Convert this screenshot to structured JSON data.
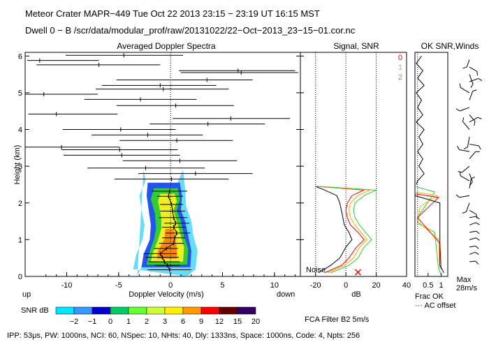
{
  "header": {
    "line1": "Meteor Crater   MAPR−449   Tue Oct 22 2013 23:15 − 23:19 UT 16:15 MST",
    "line2": "Dwell   0 −  B    /scr/data/modular_prof/raw/20131022/22−Oct−2013_23−15−01.cor.nc"
  },
  "footer": {
    "params": "IPP: 53μs,  PW: 1000ns,  NCI: 60,  NSpec: 10, NHts: 40,  Dly: 1333ns,  Space: 1000ns,  Code: 4,  Npts: 256",
    "filter": "FCA Filter B2   5m/s"
  },
  "colorbar": {
    "label": "SNR dB",
    "ticks": [
      "−2",
      "−1",
      "0",
      "1",
      "2",
      "3",
      "6",
      "9",
      "12",
      "15",
      "20"
    ],
    "colors": [
      "#00e5ff",
      "#3399ff",
      "#0000cc",
      "#00cc66",
      "#66ff33",
      "#ccff33",
      "#ffee00",
      "#ff9900",
      "#ff0000",
      "#660000",
      "#330066"
    ]
  },
  "chart_data": [
    {
      "type": "scatter",
      "title": "Averaged Doppler Spectra",
      "xlabel": "Doppler Velocity (m/s)",
      "ylabel": "Height (km)",
      "x_side_labels": [
        "up",
        "down"
      ],
      "xlim": [
        -14,
        12.5
      ],
      "ylim": [
        0,
        6.1
      ],
      "xticks": [
        -10,
        -5,
        0,
        5,
        10
      ],
      "yticks": [
        0,
        1,
        2,
        3,
        4,
        5,
        6
      ],
      "contour_colors": [
        "#66ddff",
        "#2255ee",
        "#33cc33",
        "#eeee22",
        "#ff8800"
      ],
      "error_bars": [
        {
          "h": 6.02,
          "c": -4.5,
          "l": -10.1,
          "r": 1.2
        },
        {
          "h": 5.88,
          "c": -12.6,
          "l": -13.8,
          "r": -6.9
        },
        {
          "h": 5.76,
          "c": -6.9,
          "l": -12.9,
          "r": -1.0
        },
        {
          "h": 5.6,
          "c": 6.5,
          "l": 0.8,
          "r": 12.0
        },
        {
          "h": 5.55,
          "c": 6.8,
          "l": 1.0,
          "r": 12.3
        },
        {
          "h": 5.35,
          "c": 3.5,
          "l": -5.2,
          "r": 7.9
        },
        {
          "h": 5.2,
          "c": -1.0,
          "l": -6.6,
          "r": 4.4
        },
        {
          "h": 5.1,
          "c": -0.7,
          "l": -7.2,
          "r": 5.6
        },
        {
          "h": 4.96,
          "c": -12.2,
          "l": -14.0,
          "r": -7.0
        },
        {
          "h": 4.82,
          "c": -2.9,
          "l": -8.3,
          "r": 2.5
        },
        {
          "h": 4.65,
          "c": 0.5,
          "l": -5.2,
          "r": 6.1
        },
        {
          "h": 4.42,
          "c": -11.0,
          "l": -13.7,
          "r": -5.1
        },
        {
          "h": 4.3,
          "c": 5.8,
          "l": 0.2,
          "r": 11.5
        },
        {
          "h": 4.15,
          "c": 3.6,
          "l": -2.0,
          "r": 9.1
        },
        {
          "h": 4.0,
          "c": -4.8,
          "l": -10.4,
          "r": 0.5
        },
        {
          "h": 3.85,
          "c": -2.2,
          "l": -7.6,
          "r": 3.1
        },
        {
          "h": 3.7,
          "c": 0.6,
          "l": -4.9,
          "r": 6.0
        },
        {
          "h": 3.52,
          "c": -10.5,
          "l": -14.0,
          "r": -4.9
        },
        {
          "h": 3.45,
          "c": -4.9,
          "l": -10.5,
          "r": 0.7
        },
        {
          "h": 3.3,
          "c": -4.7,
          "l": -10.3,
          "r": 0.9
        },
        {
          "h": 3.15,
          "c": 0.9,
          "l": -4.6,
          "r": 6.4
        },
        {
          "h": 2.95,
          "c": -2.4,
          "l": -8.0,
          "r": 3.3
        },
        {
          "h": 2.8,
          "c": 2.4,
          "l": -3.1,
          "r": 7.9
        },
        {
          "h": 2.65,
          "c": 0.1,
          "l": -5.4,
          "r": 5.6
        },
        {
          "h": 2.32,
          "c": -0.1,
          "l": -1.8,
          "r": 1.6
        },
        {
          "h": 2.18,
          "c": -0.2,
          "l": -1.3,
          "r": 1.2
        },
        {
          "h": 1.96,
          "c": 0.1,
          "l": -1.0,
          "r": 1.2
        },
        {
          "h": 1.78,
          "c": 0.2,
          "l": -1.0,
          "r": 1.4
        },
        {
          "h": 1.6,
          "c": 0.3,
          "l": -1.1,
          "r": 1.6
        },
        {
          "h": 1.45,
          "c": 0.5,
          "l": -0.6,
          "r": 1.8
        },
        {
          "h": 1.34,
          "c": 0.3,
          "l": -0.8,
          "r": 1.5
        },
        {
          "h": 1.18,
          "c": 0.6,
          "l": -0.5,
          "r": 1.9
        },
        {
          "h": 1.05,
          "c": 0.4,
          "l": -0.8,
          "r": 1.4
        },
        {
          "h": 0.9,
          "c": 0.3,
          "l": -1.1,
          "r": 1.3
        },
        {
          "h": 0.76,
          "c": -0.4,
          "l": -1.6,
          "r": 0.7
        },
        {
          "h": 0.62,
          "c": -1.0,
          "l": -2.6,
          "r": 0.6
        },
        {
          "h": 0.52,
          "c": -0.8,
          "l": -2.4,
          "r": 0.8
        },
        {
          "h": 0.4,
          "c": -0.6,
          "l": -2.1,
          "r": 0.9
        },
        {
          "h": 0.3,
          "c": -0.3,
          "l": -1.5,
          "r": 0.9
        },
        {
          "h": 0.18,
          "c": -0.1,
          "l": -2.2,
          "r": 2.0
        }
      ]
    },
    {
      "type": "line",
      "title": "Signal, SNR",
      "xlabel": "dB",
      "xlim": [
        -30,
        40
      ],
      "xticks": [
        -20,
        0,
        20,
        40
      ],
      "annotation": "Noise",
      "heights": [
        0.1,
        0.3,
        0.5,
        0.8,
        1.0,
        1.2,
        1.4,
        1.6,
        1.8,
        2.0,
        2.2,
        2.35,
        2.45
      ],
      "series": [
        {
          "name": "signal",
          "color": "#000000",
          "values": [
            -18,
            -10,
            -4,
            0,
            4,
            2,
            -1,
            -2,
            -3,
            -4,
            -6,
            -14,
            -20
          ]
        },
        {
          "name": "snr 0",
          "color": "#ff0000",
          "values": [
            -14,
            -3,
            2,
            7,
            12,
            8,
            3,
            1,
            0,
            1,
            4,
            12,
            -19
          ]
        },
        {
          "name": "snr 1",
          "color": "#ffaa00",
          "values": [
            -12,
            -1,
            5,
            9,
            14,
            10,
            6,
            3,
            2,
            3,
            8,
            16,
            -18
          ]
        },
        {
          "name": "snr 2",
          "color": "#33cc33",
          "values": [
            -10,
            2,
            8,
            12,
            17,
            13,
            9,
            6,
            5,
            6,
            12,
            20,
            -17
          ]
        }
      ],
      "noise_marker_x": 8
    },
    {
      "type": "line",
      "title": "OK SNR,Winds",
      "legend": [
        {
          "label": "0",
          "color": "#ff0000"
        },
        {
          "label": "1",
          "color": "#ffaa00"
        },
        {
          "label": "2",
          "color": "#33cc33"
        }
      ],
      "xlim": [
        0,
        1.25
      ],
      "xticks": [
        "0.5",
        "1"
      ],
      "xlabel": "Frac OK",
      "xlabel2": "··· AC offset",
      "frac_ok": {
        "heights": [
          6.0,
          5.8,
          5.6,
          5.4,
          5.2,
          5.0,
          4.8,
          4.6,
          4.4,
          4.2,
          4.0,
          3.8,
          3.6,
          3.4,
          3.2,
          3.0,
          2.8,
          2.6,
          2.5
        ],
        "values": [
          0.25,
          0.05,
          0.3,
          0.1,
          0.35,
          0.05,
          0.25,
          0.1,
          0.3,
          0.05,
          0.35,
          0.15,
          0.3,
          0.1,
          0.3,
          0.15,
          0.35,
          0.1,
          0.05
        ]
      },
      "winds_label": "Max",
      "winds_max": "28m/s",
      "wind_barbs": [
        {
          "h": 5.9,
          "dir": 200,
          "spd": 0.6
        },
        {
          "h": 5.7,
          "dir": 120,
          "spd": 0.7
        },
        {
          "h": 5.5,
          "dir": 160,
          "spd": 0.9
        },
        {
          "h": 5.3,
          "dir": 70,
          "spd": 0.8
        },
        {
          "h": 5.0,
          "dir": 300,
          "spd": 0.9
        },
        {
          "h": 4.8,
          "dir": 20,
          "spd": 0.8
        },
        {
          "h": 4.6,
          "dir": 250,
          "spd": 0.9
        },
        {
          "h": 4.4,
          "dir": 140,
          "spd": 0.7
        },
        {
          "h": 4.2,
          "dir": 60,
          "spd": 0.8
        },
        {
          "h": 4.0,
          "dir": 320,
          "spd": 0.9
        },
        {
          "h": 3.8,
          "dir": 190,
          "spd": 0.9
        },
        {
          "h": 3.6,
          "dir": 100,
          "spd": 0.8
        },
        {
          "h": 3.4,
          "dir": 280,
          "spd": 0.9
        },
        {
          "h": 3.2,
          "dir": 40,
          "spd": 0.8
        },
        {
          "h": 3.0,
          "dir": 230,
          "spd": 0.8
        },
        {
          "h": 2.8,
          "dir": 160,
          "spd": 0.7
        },
        {
          "h": 2.6,
          "dir": 300,
          "spd": 0.9
        },
        {
          "h": 2.4,
          "dir": 10,
          "spd": 0.8
        },
        {
          "h": 2.2,
          "dir": 260,
          "spd": 0.9
        },
        {
          "h": 2.0,
          "dir": 200,
          "spd": 0.8
        },
        {
          "h": 1.8,
          "dir": 120,
          "spd": 0.6
        },
        {
          "h": 1.6,
          "dir": 80,
          "spd": 0.5
        },
        {
          "h": 1.4,
          "dir": 70,
          "spd": 0.5
        },
        {
          "h": 1.2,
          "dir": 80,
          "spd": 0.5
        },
        {
          "h": 1.0,
          "dir": 75,
          "spd": 0.5
        },
        {
          "h": 0.8,
          "dir": 80,
          "spd": 0.4
        },
        {
          "h": 0.6,
          "dir": 70,
          "spd": 0.4
        },
        {
          "h": 0.4,
          "dir": 85,
          "spd": 0.4
        }
      ]
    }
  ]
}
